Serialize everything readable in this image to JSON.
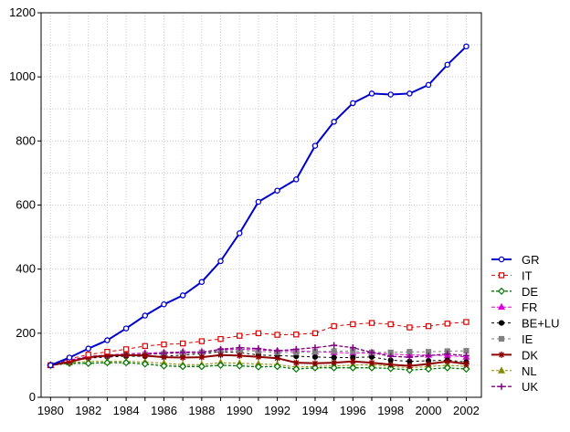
{
  "chart_data": {
    "type": "line",
    "title": "",
    "xlabel": "",
    "ylabel": "",
    "x": [
      1980,
      1981,
      1982,
      1983,
      1984,
      1985,
      1986,
      1987,
      1988,
      1989,
      1990,
      1991,
      1992,
      1993,
      1994,
      1995,
      1996,
      1997,
      1998,
      1999,
      2000,
      2001,
      2002
    ],
    "xlim": [
      1979.5,
      2002.8
    ],
    "ylim": [
      0,
      1200
    ],
    "xticks": [
      1980,
      1982,
      1984,
      1986,
      1988,
      1990,
      1992,
      1994,
      1996,
      1998,
      2000,
      2002
    ],
    "yticks": [
      0,
      200,
      400,
      600,
      800,
      1000,
      1200
    ],
    "grid": true,
    "legend_position": "right",
    "series": [
      {
        "name": "GR",
        "color": "#0000cc",
        "values": [
          100,
          124,
          152,
          178,
          215,
          255,
          290,
          318,
          360,
          425,
          512,
          610,
          645,
          680,
          785,
          860,
          918,
          948,
          945,
          948,
          975,
          1038,
          1095
        ]
      },
      {
        "name": "IT",
        "color": "#dd0000",
        "values": [
          100,
          120,
          133,
          142,
          150,
          160,
          165,
          168,
          175,
          182,
          192,
          200,
          195,
          196,
          200,
          222,
          228,
          232,
          228,
          218,
          222,
          230,
          235
        ]
      },
      {
        "name": "DE",
        "color": "#007700",
        "values": [
          100,
          106,
          106,
          108,
          108,
          104,
          98,
          96,
          96,
          100,
          98,
          95,
          96,
          88,
          92,
          92,
          92,
          92,
          90,
          85,
          88,
          92,
          88
        ]
      },
      {
        "name": "FR",
        "color": "#dd00dd",
        "values": [
          100,
          116,
          128,
          132,
          136,
          138,
          140,
          142,
          142,
          148,
          150,
          148,
          145,
          145,
          142,
          140,
          138,
          138,
          135,
          132,
          132,
          130,
          126
        ]
      },
      {
        "name": "BE+LU",
        "color": "#000000",
        "values": [
          100,
          112,
          122,
          126,
          128,
          128,
          128,
          132,
          136,
          142,
          140,
          132,
          130,
          128,
          126,
          124,
          124,
          126,
          116,
          112,
          114,
          116,
          110
        ]
      },
      {
        "name": "IE",
        "color": "#808080",
        "values": [
          100,
          114,
          126,
          130,
          134,
          134,
          136,
          138,
          140,
          145,
          146,
          144,
          140,
          140,
          142,
          144,
          144,
          140,
          140,
          142,
          142,
          144,
          145
        ]
      },
      {
        "name": "DK",
        "color": "#8b0000",
        "values": [
          100,
          110,
          125,
          130,
          132,
          130,
          125,
          124,
          125,
          132,
          130,
          126,
          122,
          108,
          106,
          108,
          112,
          108,
          102,
          98,
          104,
          112,
          104
        ]
      },
      {
        "name": "NL",
        "color": "#8b8b00",
        "values": [
          100,
          108,
          112,
          112,
          112,
          110,
          106,
          102,
          102,
          108,
          106,
          104,
          102,
          94,
          96,
          98,
          100,
          102,
          96,
          92,
          96,
          100,
          96
        ]
      },
      {
        "name": "UK",
        "color": "#800080",
        "values": [
          100,
          115,
          125,
          128,
          132,
          134,
          138,
          140,
          140,
          150,
          155,
          152,
          145,
          150,
          155,
          162,
          155,
          140,
          128,
          125,
          130,
          135,
          130
        ]
      }
    ]
  }
}
